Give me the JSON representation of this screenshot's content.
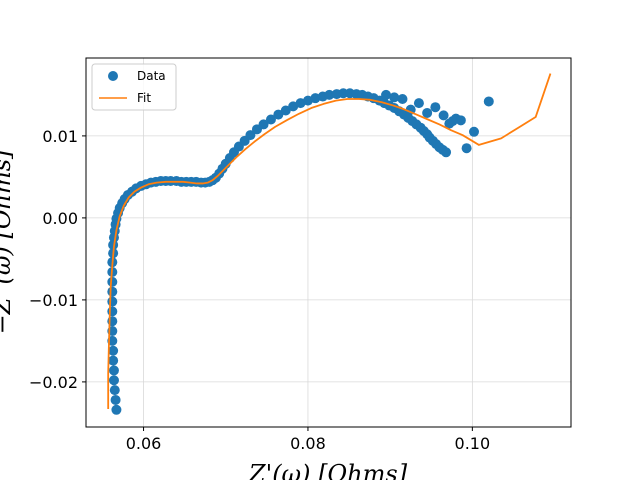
{
  "chart_data": {
    "type": "scatter",
    "xlabel": "Z'(ω) [Ohms]",
    "ylabel": "−Z''(ω) [Ohms]",
    "xlim": [
      0.053,
      0.112
    ],
    "ylim": [
      -0.0255,
      0.0195
    ],
    "x_ticks": [
      0.06,
      0.08,
      0.1
    ],
    "x_tick_labels": [
      "0.06",
      "0.08",
      "0.10"
    ],
    "y_ticks": [
      -0.02,
      -0.01,
      0.0,
      0.01
    ],
    "y_tick_labels": [
      "−0.02",
      "−0.01",
      "0.00",
      "0.01"
    ],
    "grid": true,
    "legend_position": "top-left",
    "series": [
      {
        "name": "Data",
        "kind": "markers",
        "color": "#1f77b4",
        "x": [
          0.0567,
          0.0566,
          0.0565,
          0.0564,
          0.0564,
          0.0563,
          0.0563,
          0.0562,
          0.0562,
          0.0562,
          0.0562,
          0.0562,
          0.0562,
          0.0562,
          0.0562,
          0.0562,
          0.0563,
          0.0563,
          0.0564,
          0.0565,
          0.0566,
          0.0567,
          0.0569,
          0.0571,
          0.0574,
          0.0577,
          0.0581,
          0.0586,
          0.0591,
          0.0597,
          0.0603,
          0.0609,
          0.0615,
          0.0621,
          0.0627,
          0.0633,
          0.064,
          0.0646,
          0.0652,
          0.0658,
          0.0664,
          0.067,
          0.0675,
          0.068,
          0.0684,
          0.0688,
          0.0692,
          0.0696,
          0.07,
          0.0705,
          0.071,
          0.0716,
          0.0723,
          0.073,
          0.0738,
          0.0746,
          0.0755,
          0.0764,
          0.0773,
          0.0782,
          0.0791,
          0.08,
          0.0809,
          0.0818,
          0.0826,
          0.0835,
          0.0843,
          0.0851,
          0.0859,
          0.0866,
          0.0873,
          0.088,
          0.0887,
          0.0893,
          0.0899,
          0.0905,
          0.0911,
          0.0917,
          0.0922,
          0.0927,
          0.0932,
          0.0937,
          0.0941,
          0.0945,
          0.0948,
          0.0952,
          0.0956,
          0.096,
          0.0964,
          0.0968,
          0.0972,
          0.0976,
          0.098,
          0.0986,
          0.0993,
          0.1002,
          0.102,
          0.0965,
          0.0955,
          0.0945,
          0.0935,
          0.0925,
          0.0915,
          0.0905,
          0.0895
        ],
        "y": [
          -0.0234,
          -0.0222,
          -0.021,
          -0.0198,
          -0.0186,
          -0.0174,
          -0.0162,
          -0.015,
          -0.0138,
          -0.0126,
          -0.0114,
          -0.0102,
          -0.009,
          -0.0078,
          -0.0066,
          -0.0054,
          -0.0043,
          -0.0033,
          -0.0024,
          -0.0016,
          -0.0008,
          -0.0001,
          0.0006,
          0.0012,
          0.0018,
          0.0023,
          0.0028,
          0.0032,
          0.0036,
          0.0039,
          0.0041,
          0.0043,
          0.0044,
          0.0045,
          0.0045,
          0.0045,
          0.0045,
          0.0044,
          0.0044,
          0.0044,
          0.0044,
          0.0043,
          0.0043,
          0.0044,
          0.0046,
          0.0049,
          0.0054,
          0.006,
          0.0066,
          0.0073,
          0.008,
          0.0087,
          0.0094,
          0.0101,
          0.0108,
          0.0114,
          0.012,
          0.0126,
          0.0131,
          0.0136,
          0.014,
          0.0143,
          0.0146,
          0.0148,
          0.015,
          0.0151,
          0.0152,
          0.0152,
          0.0151,
          0.015,
          0.0148,
          0.0146,
          0.0143,
          0.014,
          0.0137,
          0.0134,
          0.013,
          0.0126,
          0.0122,
          0.0118,
          0.0114,
          0.011,
          0.0106,
          0.0102,
          0.0098,
          0.0094,
          0.009,
          0.0086,
          0.0083,
          0.008,
          0.0115,
          0.0118,
          0.0121,
          0.0119,
          0.0085,
          0.0105,
          0.0142,
          0.0125,
          0.0135,
          0.0128,
          0.014,
          0.0132,
          0.0145,
          0.0147,
          0.015
        ]
      },
      {
        "name": "Fit",
        "kind": "line",
        "color": "#ff7f0e",
        "x": [
          0.0557,
          0.0557,
          0.0558,
          0.0559,
          0.056,
          0.0562,
          0.0564,
          0.0567,
          0.0571,
          0.0576,
          0.0582,
          0.0589,
          0.0597,
          0.0606,
          0.0616,
          0.0627,
          0.0638,
          0.0648,
          0.0657,
          0.0665,
          0.0672,
          0.0678,
          0.0684,
          0.069,
          0.0697,
          0.0705,
          0.0714,
          0.0724,
          0.0735,
          0.0747,
          0.076,
          0.0774,
          0.0789,
          0.0804,
          0.0819,
          0.0834,
          0.0848,
          0.0862,
          0.0876,
          0.089,
          0.0904,
          0.0918,
          0.0932,
          0.0946,
          0.096,
          0.0974,
          0.0988,
          0.1008,
          0.1035,
          0.1077,
          0.1095
        ],
        "y": [
          -0.0233,
          -0.019,
          -0.015,
          -0.0115,
          -0.0085,
          -0.0058,
          -0.0035,
          -0.0015,
          0.0002,
          0.0015,
          0.0025,
          0.0032,
          0.0037,
          0.0041,
          0.0043,
          0.0044,
          0.0044,
          0.0044,
          0.0043,
          0.0042,
          0.0042,
          0.0043,
          0.0046,
          0.0051,
          0.0058,
          0.0066,
          0.0075,
          0.0084,
          0.0093,
          0.0102,
          0.0111,
          0.0119,
          0.0127,
          0.0134,
          0.0139,
          0.0143,
          0.0145,
          0.0145,
          0.0144,
          0.0141,
          0.0137,
          0.0132,
          0.0126,
          0.012,
          0.0114,
          0.0107,
          0.0101,
          0.0089,
          0.0097,
          0.0123,
          0.0176
        ]
      }
    ]
  }
}
